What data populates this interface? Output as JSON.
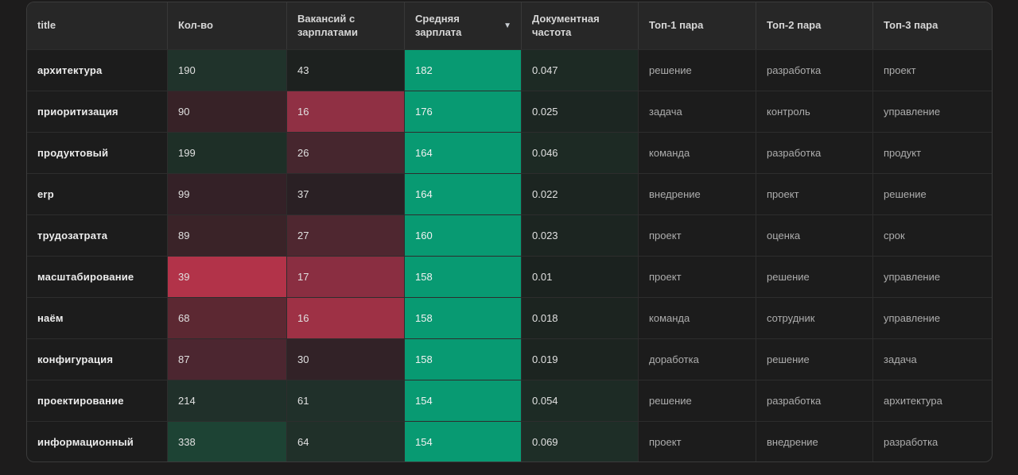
{
  "colors": {
    "page_bg": "#1d1c1c",
    "card_bg": "#1c1c1c",
    "header_bg": "#272727",
    "salary_accent": "#089a72",
    "positive_dark": "#1d4334",
    "negative_bright": "#b23349"
  },
  "icons": {
    "sort_desc": "▼"
  },
  "table": {
    "columns": [
      {
        "key": "title",
        "label": "title",
        "sorted": false
      },
      {
        "key": "count",
        "label": "Кол-во",
        "sorted": false
      },
      {
        "key": "with_salary",
        "label": "Вакансий с зарплатами",
        "sorted": false
      },
      {
        "key": "avg_salary",
        "label": "Средняя зарплата",
        "sorted": true
      },
      {
        "key": "doc_freq",
        "label": "Документная частота",
        "sorted": false
      },
      {
        "key": "top1",
        "label": "Топ-1 пара",
        "sorted": false
      },
      {
        "key": "top2",
        "label": "Топ-2 пара",
        "sorted": false
      },
      {
        "key": "top3",
        "label": "Топ-3 пара",
        "sorted": false
      }
    ],
    "rows": [
      {
        "title": "архитектура",
        "count": "190",
        "with_salary": "43",
        "avg_salary": "182",
        "doc_freq": "0.047",
        "top1": "решение",
        "top2": "разработка",
        "top3": "проект",
        "bg": {
          "count": "#20332b",
          "with_salary": "#1d211f",
          "avg_salary": "#089a72",
          "doc_freq": "#1d2a24"
        }
      },
      {
        "title": "приоритизация",
        "count": "90",
        "with_salary": "16",
        "avg_salary": "176",
        "doc_freq": "0.025",
        "top1": "задача",
        "top2": "контроль",
        "top3": "управление",
        "bg": {
          "count": "#372227",
          "with_salary": "#903044",
          "avg_salary": "#089a72",
          "doc_freq": "#1c2622"
        }
      },
      {
        "title": "продуктовый",
        "count": "199",
        "with_salary": "26",
        "avg_salary": "164",
        "doc_freq": "0.046",
        "top1": "команда",
        "top2": "разработка",
        "top3": "продукт",
        "bg": {
          "count": "#1e2f27",
          "with_salary": "#46262e",
          "avg_salary": "#089a72",
          "doc_freq": "#1d2a24"
        }
      },
      {
        "title": "erp",
        "count": "99",
        "with_salary": "37",
        "avg_salary": "164",
        "doc_freq": "0.022",
        "top1": "внедрение",
        "top2": "проект",
        "top3": "решение",
        "bg": {
          "count": "#342127",
          "with_salary": "#2a2024",
          "avg_salary": "#089a72",
          "doc_freq": "#1c2521"
        }
      },
      {
        "title": "трудозатрата",
        "count": "89",
        "with_salary": "27",
        "avg_salary": "160",
        "doc_freq": "0.023",
        "top1": "проект",
        "top2": "оценка",
        "top3": "срок",
        "bg": {
          "count": "#3a2328",
          "with_salary": "#4f2730",
          "avg_salary": "#089a72",
          "doc_freq": "#1c2521"
        }
      },
      {
        "title": "масштабирование",
        "count": "39",
        "with_salary": "17",
        "avg_salary": "158",
        "doc_freq": "0.01",
        "top1": "проект",
        "top2": "решение",
        "top3": "управление",
        "bg": {
          "count": "#b23349",
          "with_salary": "#8a2e41",
          "avg_salary": "#089a72",
          "doc_freq": "#1b221f"
        }
      },
      {
        "title": "наём",
        "count": "68",
        "with_salary": "16",
        "avg_salary": "158",
        "doc_freq": "0.018",
        "top1": "команда",
        "top2": "сотрудник",
        "top3": "управление",
        "bg": {
          "count": "#5c2832",
          "with_salary": "#9e3145",
          "avg_salary": "#089a72",
          "doc_freq": "#1c2420"
        }
      },
      {
        "title": "конфигурация",
        "count": "87",
        "with_salary": "30",
        "avg_salary": "158",
        "doc_freq": "0.019",
        "top1": "доработка",
        "top2": "решение",
        "top3": "задача",
        "bg": {
          "count": "#4c2630",
          "with_salary": "#322227",
          "avg_salary": "#089a72",
          "doc_freq": "#1c2420"
        }
      },
      {
        "title": "проектирование",
        "count": "214",
        "with_salary": "61",
        "avg_salary": "154",
        "doc_freq": "0.054",
        "top1": "решение",
        "top2": "разработка",
        "top3": "архитектура",
        "bg": {
          "count": "#20302a",
          "with_salary": "#20302a",
          "avg_salary": "#089a72",
          "doc_freq": "#1d2b25"
        }
      },
      {
        "title": "информационный",
        "count": "338",
        "with_salary": "64",
        "avg_salary": "154",
        "doc_freq": "0.069",
        "top1": "проект",
        "top2": "внедрение",
        "top3": "разработка",
        "bg": {
          "count": "#1d4334",
          "with_salary": "#203029",
          "avg_salary": "#089a72",
          "doc_freq": "#1e2e27"
        }
      }
    ]
  }
}
